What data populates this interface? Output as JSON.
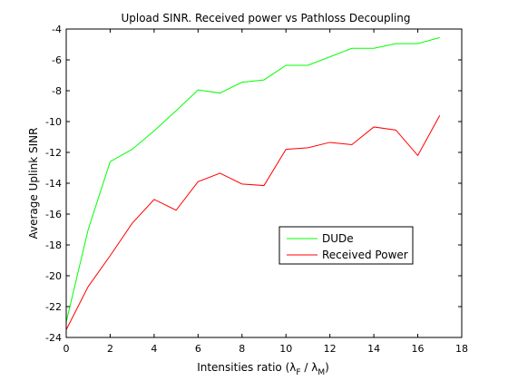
{
  "chart_data": {
    "type": "line",
    "title": "Upload SINR. Received power vs Pathloss Decoupling",
    "xlabel": {
      "prefix": "Intensities ratio (",
      "lambda": "λ",
      "sub_f": "F",
      "slash": " / ",
      "sub_m": "M",
      "suffix": ")"
    },
    "ylabel": "Average Uplink SINR",
    "xlim": [
      0,
      18
    ],
    "ylim": [
      -24,
      -4
    ],
    "xticks": [
      0,
      2,
      4,
      6,
      8,
      10,
      12,
      14,
      16,
      18
    ],
    "yticks": [
      -24,
      -22,
      -20,
      -18,
      -16,
      -14,
      -12,
      -10,
      -8,
      -6,
      -4
    ],
    "grid": false,
    "legend_position": "center-right",
    "x": [
      0,
      1,
      2,
      3,
      4,
      5,
      6,
      7,
      8,
      9,
      10,
      11,
      12,
      13,
      14,
      15,
      16,
      17
    ],
    "series": [
      {
        "name": "DUDe",
        "color": "#00ff00",
        "values": [
          -23.0,
          -17.0,
          -12.6,
          -11.8,
          -10.6,
          -9.3,
          -7.95,
          -8.15,
          -7.45,
          -7.3,
          -6.35,
          -6.35,
          -5.8,
          -5.25,
          -5.25,
          -4.95,
          -4.95,
          -4.55
        ]
      },
      {
        "name": "Received Power",
        "color": "#ff0000",
        "values": [
          -23.5,
          -20.7,
          -18.7,
          -16.6,
          -15.05,
          -15.75,
          -13.9,
          -13.35,
          -14.05,
          -14.15,
          -11.8,
          -11.7,
          -11.35,
          -11.5,
          -10.35,
          -10.55,
          -12.2,
          -9.6
        ]
      }
    ]
  }
}
